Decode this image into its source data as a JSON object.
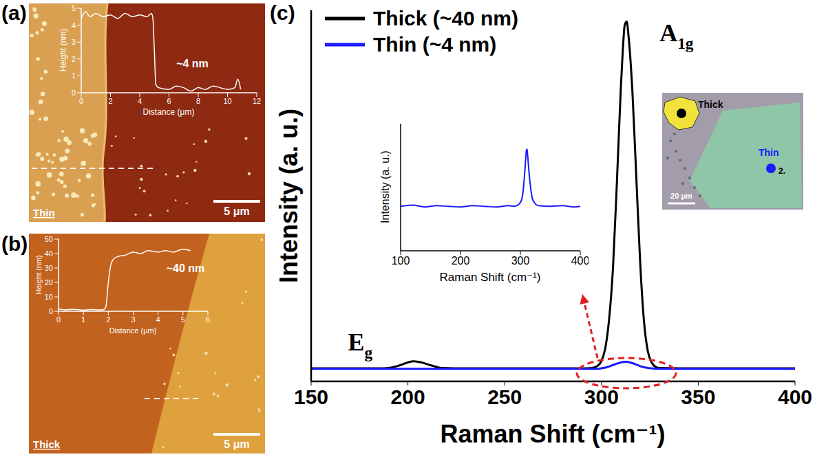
{
  "chart_data": [
    {
      "panel": "(a)",
      "type": "line",
      "x_label": "Distance (μm)",
      "y_label": "Height (nm)",
      "x": [
        0,
        0.3,
        0.6,
        1,
        1.5,
        2,
        2.5,
        3,
        3.5,
        4,
        4.5,
        4.8,
        4.9,
        5,
        5.1,
        5.3,
        6,
        6.5,
        7,
        7.5,
        8,
        8.5,
        9,
        9.5,
        10,
        10.5,
        10.7,
        10.9
      ],
      "values": [
        4.4,
        4.8,
        4.5,
        4.7,
        4.5,
        4.6,
        4.4,
        4.7,
        4.5,
        4.6,
        4.5,
        4.7,
        4.4,
        2.5,
        0.5,
        0.3,
        0.2,
        0.4,
        0.3,
        0.1,
        0.3,
        0.2,
        0.4,
        0.3,
        0.2,
        0.3,
        0.8,
        0.2
      ],
      "color": "#ffffff",
      "xlim": [
        0,
        12
      ],
      "xticks": [
        0,
        2,
        4,
        6,
        8,
        10,
        12
      ],
      "ylim": [
        0,
        5
      ],
      "yticks": [
        0,
        1,
        2,
        3,
        4,
        5
      ],
      "grid": false,
      "annotations": [
        {
          "text": "~4 nm",
          "x": 7.6,
          "y": 1.5
        }
      ],
      "image": {
        "label": "Thin",
        "scale_bar": "5 μm"
      }
    },
    {
      "panel": "(b)",
      "type": "line",
      "x_label": "Distance (μm)",
      "y_label": "Height (nm)",
      "x": [
        0,
        0.3,
        0.6,
        1,
        1.3,
        1.6,
        1.8,
        1.9,
        2,
        2.1,
        2.2,
        2.4,
        2.7,
        3,
        3.3,
        3.6,
        4,
        4.3,
        4.6,
        5,
        5.3
      ],
      "values": [
        1.5,
        1.0,
        1.3,
        0.8,
        1.2,
        0.9,
        1.1,
        3,
        20,
        32,
        36,
        38,
        39,
        41,
        40,
        42,
        41,
        42,
        41,
        43,
        42
      ],
      "color": "#ffffff",
      "xlim": [
        0,
        6
      ],
      "xticks": [
        0,
        1,
        2,
        3,
        4,
        5,
        6
      ],
      "ylim": [
        0,
        50
      ],
      "yticks": [
        0,
        10,
        20,
        30,
        40,
        50
      ],
      "grid": false,
      "annotations": [
        {
          "text": "~40 nm",
          "x": 5.1,
          "y": 27
        }
      ],
      "image": {
        "label": "Thick",
        "scale_bar": "5 μm"
      }
    },
    {
      "panel": "(c)",
      "type": "line",
      "x_label": "Raman Shift (cm⁻¹)",
      "y_label": "Intensity (a. u.)",
      "x": [
        150,
        170,
        185,
        190,
        195,
        200,
        203,
        207,
        212,
        218,
        230,
        250,
        270,
        290,
        295,
        298,
        300,
        302,
        304,
        306,
        308,
        310,
        311,
        312,
        313,
        314,
        316,
        318,
        320,
        322,
        324,
        326,
        328,
        330,
        350,
        375,
        400
      ],
      "series": [
        {
          "name": "Thick (~40 nm)",
          "color": "#000000",
          "values": [
            3.5,
            3.5,
            3.5,
            3.6,
            4.2,
            5.1,
            5.4,
            5.1,
            4.3,
            3.6,
            3.5,
            3.5,
            3.5,
            3.5,
            3.6,
            4.2,
            5.5,
            9,
            17,
            31,
            54,
            79,
            89,
            96,
            97,
            93,
            78,
            55,
            32,
            16,
            8,
            5,
            3.9,
            3.6,
            3.5,
            3.5,
            3.5
          ]
        },
        {
          "name": "Thin (~4 nm)",
          "color": "#1a1aff",
          "values": [
            3.4,
            3.4,
            3.4,
            3.4,
            3.4,
            3.4,
            3.4,
            3.4,
            3.4,
            3.4,
            3.4,
            3.4,
            3.4,
            3.4,
            3.4,
            3.4,
            3.5,
            3.7,
            4.0,
            4.4,
            4.8,
            5.1,
            5.2,
            5.3,
            5.3,
            5.2,
            4.9,
            4.5,
            4.1,
            3.8,
            3.6,
            3.5,
            3.4,
            3.4,
            3.4,
            3.4,
            3.4
          ]
        }
      ],
      "xlim": [
        150,
        400
      ],
      "xticks": [
        150,
        200,
        250,
        300,
        350,
        400
      ],
      "ylim": [
        0,
        100
      ],
      "yticks": [],
      "tick_labels": "x",
      "grid": false,
      "legend": "upper left",
      "annotations": [
        {
          "text": "A",
          "subscript": "1g",
          "x": 330,
          "y": 91.7
        },
        {
          "text": "E",
          "subscript": "g",
          "x": 169,
          "y": 8.3
        }
      ],
      "inset": {
        "type": "line",
        "x_label": "Raman Shift (cm⁻¹)",
        "y_label": "Intensity (a. u.)",
        "x": [
          100,
          120,
          140,
          160,
          180,
          200,
          220,
          240,
          260,
          280,
          290,
          300,
          304,
          307,
          309,
          310,
          311,
          312,
          314,
          317,
          320,
          325,
          330,
          350,
          370,
          390,
          400
        ],
        "values": [
          35,
          36,
          34.5,
          35.5,
          35,
          34.5,
          35.5,
          35,
          34.5,
          35.5,
          35,
          38,
          45,
          60,
          73,
          79,
          80,
          76,
          64,
          50,
          41,
          37,
          35.5,
          35,
          35.5,
          34.5,
          35
        ],
        "color": "#1a1aff",
        "xlim": [
          100,
          400
        ],
        "xticks": [
          100,
          200,
          300,
          400
        ],
        "ylim": [
          0,
          100
        ],
        "yticks": [],
        "tick_labels": "x",
        "grid": false
      },
      "image": {
        "labels": [
          "Thick",
          "Thin",
          "2."
        ],
        "scale_bar": "20 μm"
      }
    }
  ]
}
